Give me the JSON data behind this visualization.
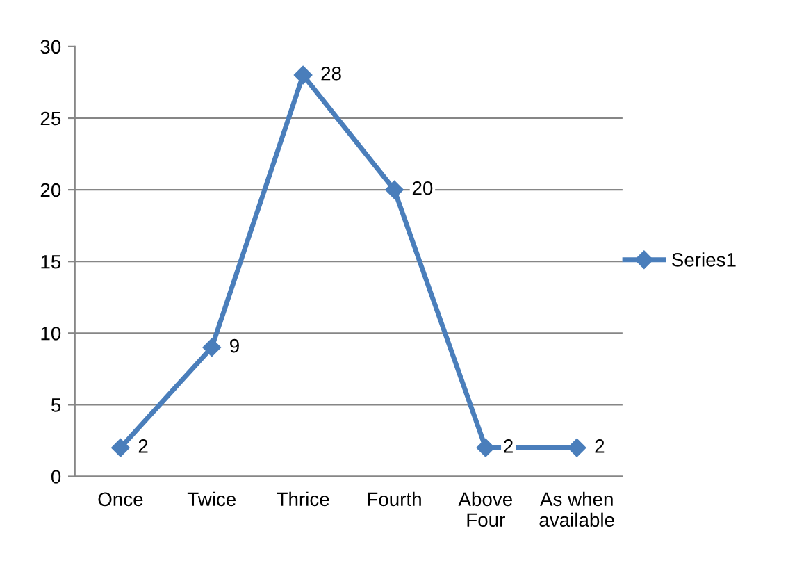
{
  "chart_data": {
    "type": "line",
    "categories": [
      "Once",
      "Twice",
      "Thrice",
      "Fourth",
      "Above Four",
      "As when available"
    ],
    "series": [
      {
        "name": "Series1",
        "color": "#4a7ebb",
        "values": [
          2,
          9,
          28,
          20,
          2,
          2
        ]
      }
    ],
    "ylim": [
      0,
      30
    ],
    "yticks": [
      0,
      5,
      10,
      15,
      20,
      25,
      30
    ],
    "grid": "y",
    "legend": "right",
    "marker": "diamond",
    "line_style": "solid",
    "data_labels": true
  }
}
